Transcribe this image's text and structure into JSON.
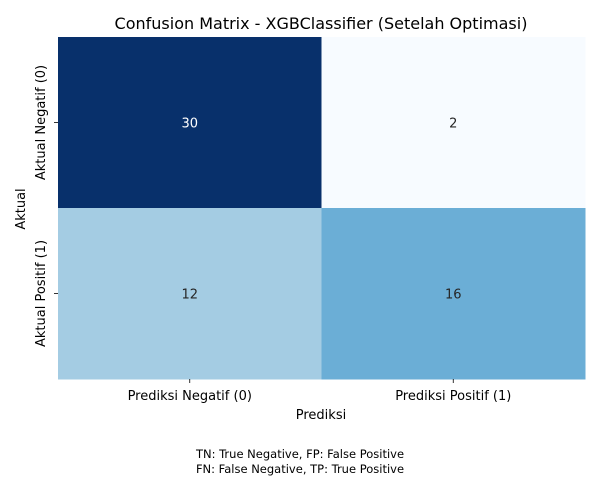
{
  "chart_data": {
    "type": "heatmap",
    "title": "Confusion Matrix - XGBClassifier (Setelah Optimasi)",
    "xlabel": "Prediksi",
    "ylabel": "Aktual",
    "x_categories": [
      "Prediksi Negatif (0)",
      "Prediksi Positif (1)"
    ],
    "y_categories": [
      "Aktual Negatif (0)",
      "Aktual Positif (1)"
    ],
    "values": [
      [
        30,
        2
      ],
      [
        12,
        16
      ]
    ],
    "colormap": "Blues",
    "vmin": 2,
    "vmax": 30,
    "colorbar": false,
    "grid": false
  },
  "footnote": [
    "TN: True Negative, FP: False Positive",
    "FN: False Negative, TP: True Positive"
  ]
}
